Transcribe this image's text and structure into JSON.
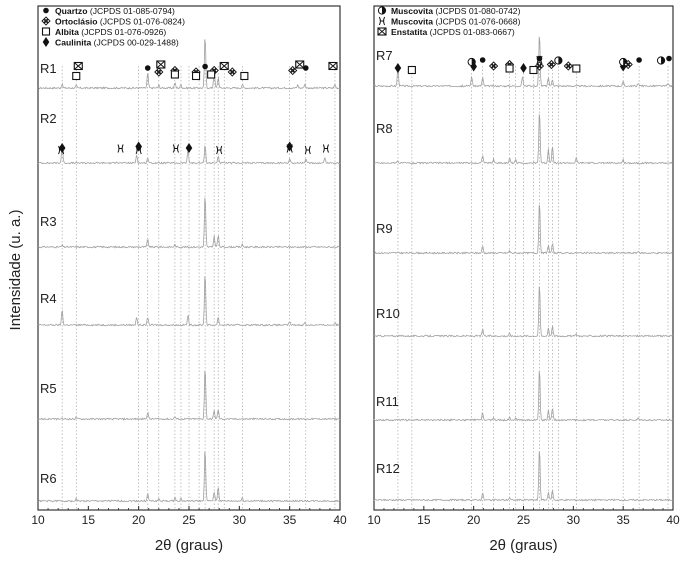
{
  "chart_data": {
    "type": "line",
    "ylabel": "Intensidade (u. a.)",
    "panels": [
      {
        "xlabel": "2θ (graus)",
        "xlim": [
          10,
          40
        ],
        "xticks": [
          10,
          15,
          20,
          25,
          30,
          35,
          40
        ],
        "legend": [
          {
            "symbol": "dot",
            "name": "Quartzo",
            "ref": "(JCPDS 01-085-0794)"
          },
          {
            "symbol": "fourdiamond",
            "name": "Ortoclásio",
            "ref": "(JCPDS 01-076-0824)"
          },
          {
            "symbol": "square",
            "name": "Albita",
            "ref": "(JCPDS 01-076-0926)"
          },
          {
            "symbol": "diamond",
            "name": "Caulinita",
            "ref": "(JCPDS 00-029-1488)"
          }
        ],
        "series": [
          {
            "name": "R1",
            "peaks": [
              [
                12.4,
                0.6
              ],
              [
                20.9,
                2.6
              ],
              [
                26.6,
                9.0
              ],
              [
                27.5,
                2.6
              ],
              [
                27.9,
                1.8
              ],
              [
                23.6,
                0.9
              ],
              [
                24.2,
                0.6
              ],
              [
                30.3,
                0.6
              ],
              [
                35.8,
                0.5
              ],
              [
                36.5,
                0.6
              ],
              [
                39.5,
                0.6
              ],
              [
                13.8,
                0.4
              ],
              [
                22.0,
                0.5
              ]
            ]
          },
          {
            "name": "R2",
            "peaks": [
              [
                12.4,
                3.2
              ],
              [
                19.8,
                1.4
              ],
              [
                20.9,
                0.9
              ],
              [
                24.9,
                2.2
              ],
              [
                26.6,
                3.2
              ],
              [
                27.9,
                1.2
              ],
              [
                35.0,
                0.8
              ],
              [
                36.6,
                0.6
              ],
              [
                38.5,
                0.9
              ],
              [
                17.8,
                0.3
              ]
            ]
          },
          {
            "name": "R3",
            "peaks": [
              [
                20.9,
                1.3
              ],
              [
                26.6,
                9.0
              ],
              [
                27.5,
                1.8
              ],
              [
                27.9,
                2.0
              ],
              [
                23.6,
                0.4
              ],
              [
                30.3,
                0.4
              ],
              [
                12.4,
                0.3
              ]
            ]
          },
          {
            "name": "R4",
            "peaks": [
              [
                12.4,
                2.6
              ],
              [
                19.8,
                1.4
              ],
              [
                20.9,
                1.4
              ],
              [
                24.9,
                1.6
              ],
              [
                26.6,
                9.0
              ],
              [
                27.9,
                1.4
              ],
              [
                35.0,
                0.6
              ],
              [
                36.5,
                0.4
              ],
              [
                39.5,
                0.4
              ]
            ]
          },
          {
            "name": "R5",
            "peaks": [
              [
                20.9,
                1.2
              ],
              [
                26.6,
                9.0
              ],
              [
                27.5,
                1.4
              ],
              [
                27.9,
                1.6
              ],
              [
                23.6,
                0.4
              ],
              [
                13.8,
                0.3
              ]
            ]
          },
          {
            "name": "R6",
            "peaks": [
              [
                20.9,
                1.2
              ],
              [
                26.6,
                9.0
              ],
              [
                27.5,
                1.6
              ],
              [
                27.9,
                2.4
              ],
              [
                23.6,
                0.6
              ],
              [
                22.0,
                0.4
              ],
              [
                30.3,
                0.5
              ],
              [
                13.8,
                0.4
              ],
              [
                24.2,
                0.4
              ]
            ]
          }
        ],
        "markers": [
          {
            "row": "R1",
            "symbol": "dot",
            "x": [
              20.9,
              26.6,
              36.6,
              39.5
            ]
          },
          {
            "row": "R1",
            "symbol": "fourdiamond",
            "x": [
              22.0,
              23.6,
              25.7,
              27.5,
              29.3,
              35.3
            ]
          },
          {
            "row": "R1",
            "symbol": "square",
            "x": [
              13.8,
              23.6,
              25.7,
              27.2,
              30.5
            ]
          },
          {
            "row": "R1",
            "symbol": "crosssquare",
            "x": [
              14.0,
              22.2,
              28.5,
              36.0,
              39.3
            ]
          },
          {
            "row": "R2",
            "symbol": "mica",
            "x": [
              12.3,
              18.2,
              20.0,
              23.7,
              28.0,
              35.0,
              36.8,
              38.6
            ]
          },
          {
            "row": "R2",
            "symbol": "diamond",
            "x": [
              12.4,
              20.0,
              25.0,
              35.0
            ]
          }
        ]
      },
      {
        "xlabel": "2θ (graus)",
        "xlim": [
          10,
          40
        ],
        "xticks": [
          10,
          15,
          20,
          25,
          30,
          35,
          40
        ],
        "legend": [
          {
            "symbol": "halfcircle",
            "name": "Muscovita",
            "ref": "(JCPDS 01-080-0742)"
          },
          {
            "symbol": "mica",
            "name": "Muscovita",
            "ref": "(JCPDS 01-076-0668)"
          },
          {
            "symbol": "crosssquare",
            "name": "Enstatita",
            "ref": "(JCPDS 01-083-0667)"
          }
        ],
        "series": [
          {
            "name": "R7",
            "peaks": [
              [
                12.4,
                3.2
              ],
              [
                19.8,
                1.6
              ],
              [
                20.9,
                1.4
              ],
              [
                24.9,
                1.6
              ],
              [
                26.6,
                9.0
              ],
              [
                27.5,
                1.4
              ],
              [
                27.9,
                1.2
              ],
              [
                35.0,
                0.7
              ],
              [
                36.5,
                0.5
              ],
              [
                39.5,
                0.4
              ]
            ]
          },
          {
            "name": "R8",
            "peaks": [
              [
                20.9,
                1.4
              ],
              [
                26.6,
                9.0
              ],
              [
                27.5,
                2.4
              ],
              [
                27.9,
                3.0
              ],
              [
                23.6,
                0.8
              ],
              [
                22.0,
                0.6
              ],
              [
                30.3,
                0.8
              ],
              [
                12.4,
                0.4
              ],
              [
                24.2,
                0.6
              ],
              [
                35.0,
                0.5
              ]
            ]
          },
          {
            "name": "R9",
            "peaks": [
              [
                20.9,
                1.2
              ],
              [
                26.6,
                9.0
              ],
              [
                27.5,
                1.4
              ],
              [
                27.9,
                1.6
              ],
              [
                23.6,
                0.4
              ],
              [
                36.5,
                0.3
              ]
            ]
          },
          {
            "name": "R10",
            "peaks": [
              [
                20.9,
                1.2
              ],
              [
                26.6,
                9.0
              ],
              [
                27.5,
                1.4
              ],
              [
                27.9,
                1.6
              ],
              [
                23.6,
                0.4
              ],
              [
                30.3,
                0.3
              ]
            ]
          },
          {
            "name": "R11",
            "peaks": [
              [
                20.9,
                1.3
              ],
              [
                26.6,
                9.0
              ],
              [
                27.5,
                1.6
              ],
              [
                27.9,
                2.0
              ],
              [
                23.6,
                0.6
              ],
              [
                22.0,
                0.4
              ],
              [
                24.2,
                0.4
              ],
              [
                36.5,
                0.3
              ]
            ]
          },
          {
            "name": "R12",
            "peaks": [
              [
                20.9,
                1.2
              ],
              [
                26.6,
                9.0
              ],
              [
                27.5,
                1.4
              ],
              [
                27.9,
                1.6
              ],
              [
                23.6,
                0.4
              ]
            ]
          }
        ],
        "markers": [
          {
            "row": "R7",
            "symbol": "diamond",
            "x": [
              12.4,
              20.0,
              25.0,
              35.0
            ]
          },
          {
            "row": "R7",
            "symbol": "halfcircle",
            "x": [
              19.8,
              28.5,
              35.0,
              38.8
            ]
          },
          {
            "row": "R7",
            "symbol": "dot",
            "x": [
              20.9,
              26.6,
              36.6,
              39.6
            ]
          },
          {
            "row": "R7",
            "symbol": "fourdiamond",
            "x": [
              22.0,
              23.6,
              26.6,
              27.8,
              29.5,
              35.5
            ]
          },
          {
            "row": "R7",
            "symbol": "square",
            "x": [
              13.8,
              23.6,
              26.0,
              30.3
            ]
          },
          {
            "row": "R7",
            "symbol": "mica",
            "x": [
              26.6
            ]
          }
        ]
      }
    ]
  }
}
